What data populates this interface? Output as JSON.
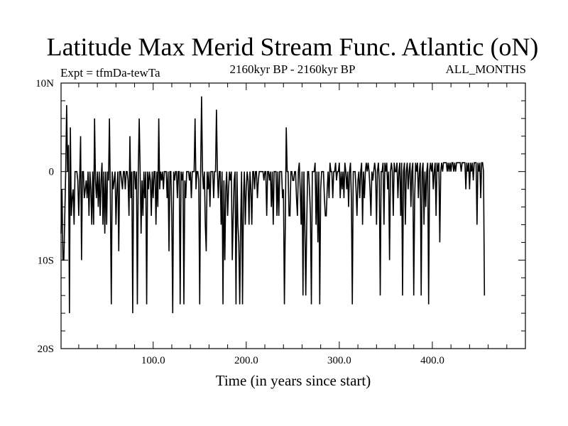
{
  "chart_data": {
    "type": "line",
    "title": "Latitude Max Merid Stream Func. Atlantic (oN)",
    "subtitle_left": "Expt = tfmDa-tewTa",
    "subtitle_center": "2160kyr BP - 2160kyr BP",
    "subtitle_right": "ALL_MONTHS",
    "xlabel": "Time (in years since start)",
    "ylabel": "",
    "xlim": [
      1,
      500
    ],
    "ylim": [
      -20,
      10
    ],
    "x_ticks": [
      100,
      200,
      300,
      400
    ],
    "x_tick_labels": [
      "100.0",
      "200.0",
      "300.0",
      "400.0"
    ],
    "y_ticks": [
      10,
      0,
      -10,
      -20
    ],
    "y_tick_labels": [
      "10N",
      "0",
      "10S",
      "20S"
    ],
    "series": [
      {
        "name": "",
        "x_start": 1,
        "x_step": 1,
        "values": [
          -7,
          -2,
          -10,
          -10,
          -5,
          0,
          7.5,
          0,
          3,
          -16,
          5,
          -5,
          -3,
          -2,
          -6,
          0,
          0,
          0,
          -1,
          -5,
          -1,
          4,
          -10,
          0,
          0,
          -3,
          -2,
          -1,
          -3,
          0,
          -5,
          0,
          -2,
          -6,
          0,
          -6,
          6,
          -1,
          -3,
          0,
          -4,
          0,
          -5,
          -1,
          1,
          -6,
          0,
          -7,
          0,
          -6,
          0,
          -1,
          6,
          -3,
          -15,
          0,
          -2,
          -1,
          0,
          -6,
          -2,
          0,
          -9,
          0,
          0,
          -1,
          -2,
          0,
          0,
          -2,
          0,
          0,
          -1,
          -5,
          4,
          -3,
          0,
          -16,
          0,
          0,
          -2,
          0,
          -15,
          0,
          6,
          0,
          -7,
          -1,
          -5,
          0,
          -3,
          0,
          -15,
          0,
          -2,
          0,
          -1,
          -5,
          0,
          -3,
          0,
          0,
          -6,
          0,
          -4,
          6,
          -2,
          0,
          -1,
          0,
          -2,
          0,
          0,
          0,
          -3,
          0,
          -9,
          0,
          0,
          -5,
          -16,
          0,
          -1,
          0,
          0,
          -3,
          0,
          0,
          -15,
          0,
          -1,
          0,
          -15,
          -1,
          -3,
          0,
          0,
          0,
          -1,
          0,
          -3,
          0,
          0,
          0,
          6,
          -2,
          0,
          0,
          -1,
          -15,
          0,
          8.5,
          0,
          -2,
          0,
          -6,
          -9,
          0,
          -2,
          0,
          -4,
          0,
          0,
          0,
          -3,
          0,
          0,
          7,
          0,
          -3,
          0,
          0,
          -6,
          0,
          -15,
          -1,
          -10,
          -2,
          0,
          -5,
          -2,
          0,
          -1,
          0,
          -10,
          -5,
          -1,
          0,
          -15,
          0,
          -6,
          -8,
          -15,
          -6,
          0,
          -15,
          -3,
          0,
          -6,
          -2,
          0,
          -1,
          -6,
          0,
          -2,
          -6,
          0,
          0,
          -2,
          0,
          0,
          -3,
          -1,
          0,
          0,
          0,
          0,
          0,
          -1,
          0,
          0,
          -5,
          0,
          0,
          -1,
          0,
          -4,
          0,
          -6,
          0,
          0,
          0,
          -5,
          0,
          -5,
          0,
          0,
          0,
          -3,
          -2,
          -15,
          -6,
          5,
          0,
          0,
          -5,
          -5,
          0,
          0,
          -1,
          -1,
          0,
          0,
          -3,
          -5,
          0,
          1,
          -2,
          -6,
          0,
          -14,
          0,
          -6,
          -14,
          -6,
          0,
          0,
          -2,
          -5,
          -15,
          0,
          0,
          0,
          1,
          -6,
          0,
          -8,
          0,
          -15,
          -2,
          0,
          0,
          0,
          -3,
          -5,
          -5,
          -2,
          0,
          -3,
          1,
          0,
          0,
          -3,
          0,
          0,
          1,
          -1,
          0,
          0,
          1,
          -3,
          0,
          -2,
          0,
          -3,
          1,
          0,
          -2,
          0,
          -4,
          0,
          1,
          -3,
          -15,
          0,
          0,
          0,
          -2,
          -5,
          -1,
          0,
          -3,
          0,
          1,
          -6,
          0,
          -3,
          0,
          1,
          0,
          1,
          0,
          -2,
          -5,
          0,
          -1,
          0,
          1,
          0,
          -6,
          0,
          1,
          -1,
          -14,
          0,
          0,
          1,
          -6,
          1,
          0,
          1,
          -2,
          0,
          -10,
          0,
          1,
          0,
          -5,
          1,
          0,
          0,
          1,
          -3,
          0,
          1,
          -5,
          1,
          -14,
          0,
          1,
          -6,
          0,
          1,
          -2,
          0,
          1,
          -4,
          0,
          1,
          -14,
          -3,
          1,
          0,
          1,
          -3,
          0,
          1,
          -14,
          0,
          1,
          -6,
          0,
          -4,
          0,
          1,
          -15,
          0,
          1,
          0,
          1,
          -2,
          0,
          1,
          -5,
          1,
          0,
          1,
          -8,
          0,
          1,
          0,
          1,
          1,
          1,
          1,
          0,
          1,
          0,
          1,
          0,
          1,
          1,
          0,
          1,
          0,
          1,
          1,
          1,
          1,
          1,
          0,
          1,
          1,
          1,
          1,
          -2,
          1,
          0,
          1,
          -2,
          1,
          0,
          1,
          -1,
          1,
          1,
          1,
          -6,
          1,
          0,
          1,
          -3,
          1,
          1,
          0,
          -14
        ]
      }
    ]
  }
}
